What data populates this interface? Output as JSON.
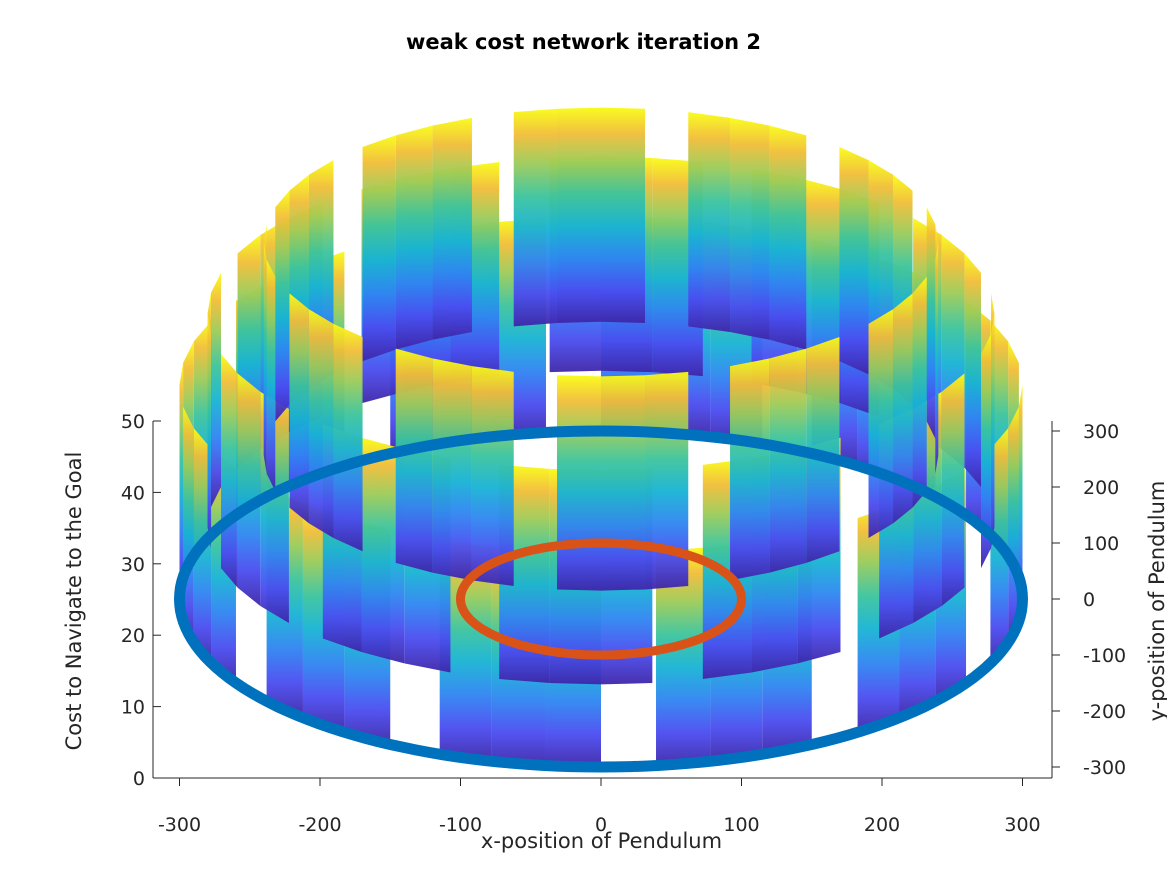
{
  "chart_data": {
    "type": "surface3d",
    "title": "weak cost network iteration 2",
    "xlabel": "x-position of Pendulum",
    "ylabel": "y-position of Pendulum",
    "zlabel": "Cost to Navigate to the Goal",
    "xlim": [
      -320,
      320
    ],
    "ylim": [
      -320,
      320
    ],
    "zlim": [
      0,
      50
    ],
    "xticks": [
      -300,
      -200,
      -100,
      0,
      100,
      200,
      300
    ],
    "yticks": [
      300,
      200,
      100,
      0,
      -100,
      -200,
      -300
    ],
    "zticks": [
      50,
      40,
      30,
      20,
      10,
      0
    ],
    "colormap": "parula",
    "series": [
      {
        "kind": "ring",
        "color": "#0072BD",
        "radius": 300,
        "z": 0
      },
      {
        "kind": "ring",
        "color": "#D95319",
        "radius": 100,
        "z": 0
      }
    ],
    "surface_bands": [
      {
        "radius": 300,
        "z_range": [
          0,
          30
        ]
      },
      {
        "radius": 280,
        "z_range": [
          10,
          40
        ]
      },
      {
        "radius": 240,
        "z_range": [
          20,
          50
        ]
      }
    ],
    "grid": false
  }
}
